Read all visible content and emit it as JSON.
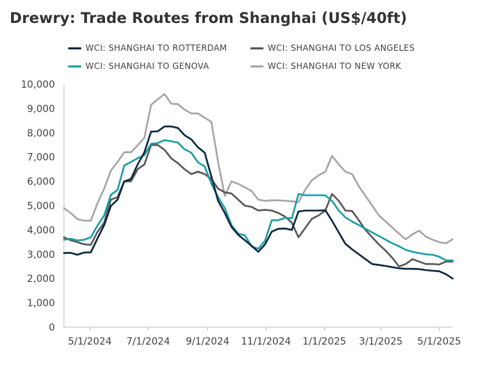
{
  "header": {
    "title": "Drewry: Trade Routes from Shanghai (US$/40ft)"
  },
  "chart_data": {
    "type": "line",
    "title": "Drewry: Trade Routes from Shanghai (US$/40ft)",
    "xlabel": "",
    "ylabel": "",
    "ylim": [
      0,
      10000
    ],
    "xlim": [
      "2024-04-04",
      "2025-05-15"
    ],
    "y_ticks": [
      0,
      1000,
      2000,
      3000,
      4000,
      5000,
      6000,
      7000,
      8000,
      9000,
      10000
    ],
    "y_tick_labels": [
      "0",
      "1,000",
      "2,000",
      "3,000",
      "4,000",
      "5,000",
      "6,000",
      "7,000",
      "8,000",
      "9,000",
      "10,000"
    ],
    "x_ticks": [
      "2024-05-01",
      "2024-07-01",
      "2024-09-01",
      "2024-11-01",
      "2025-01-01",
      "2025-03-01",
      "2025-05-01"
    ],
    "x_tick_labels": [
      "5/1/2024",
      "7/1/2024",
      "9/1/2024",
      "11/1/2024",
      "1/1/2025",
      "3/1/2025",
      "5/1/2025"
    ],
    "grid": false,
    "legend_position": "top",
    "dates": [
      "2024-04-04",
      "2024-04-11",
      "2024-04-18",
      "2024-04-25",
      "2024-05-02",
      "2024-05-09",
      "2024-05-16",
      "2024-05-23",
      "2024-05-30",
      "2024-06-06",
      "2024-06-13",
      "2024-06-20",
      "2024-06-27",
      "2024-07-04",
      "2024-07-11",
      "2024-07-18",
      "2024-07-25",
      "2024-08-01",
      "2024-08-08",
      "2024-08-15",
      "2024-08-22",
      "2024-08-29",
      "2024-09-05",
      "2024-09-12",
      "2024-09-19",
      "2024-09-26",
      "2024-10-03",
      "2024-10-10",
      "2024-10-17",
      "2024-10-24",
      "2024-10-31",
      "2024-11-07",
      "2024-11-14",
      "2024-11-21",
      "2024-11-28",
      "2024-12-05",
      "2024-12-12",
      "2024-12-19",
      "2024-12-26",
      "2025-01-02",
      "2025-01-09",
      "2025-01-16",
      "2025-01-23",
      "2025-01-30",
      "2025-02-06",
      "2025-02-13",
      "2025-02-20",
      "2025-02-27",
      "2025-03-06",
      "2025-03-13",
      "2025-03-20",
      "2025-03-27",
      "2025-04-03",
      "2025-04-10",
      "2025-04-17",
      "2025-04-24",
      "2025-05-01",
      "2025-05-08",
      "2025-05-15"
    ],
    "series": [
      {
        "name": "WCI: SHANGHAI TO ROTTERDAM",
        "color": "#0e2841",
        "values": [
          3050,
          3060,
          2980,
          3070,
          3080,
          3650,
          4200,
          4990,
          5250,
          6000,
          6100,
          6700,
          7200,
          8050,
          8060,
          8260,
          8260,
          8200,
          7900,
          7730,
          7400,
          7180,
          6200,
          5200,
          4700,
          4130,
          3800,
          3580,
          3350,
          3100,
          3400,
          3930,
          4050,
          4060,
          4000,
          4760,
          4800,
          4800,
          4800,
          4810,
          4380,
          3900,
          3430,
          3200,
          3000,
          2800,
          2600,
          2560,
          2520,
          2470,
          2420,
          2400,
          2400,
          2390,
          2350,
          2320,
          2300,
          2180,
          2000
        ]
      },
      {
        "name": "WCI: SHANGHAI TO LOS ANGELES",
        "color": "#595959",
        "values": [
          3700,
          3580,
          3500,
          3410,
          3390,
          3920,
          4300,
          5250,
          5350,
          6000,
          6000,
          6500,
          6700,
          7500,
          7500,
          7300,
          6950,
          6750,
          6500,
          6300,
          6400,
          6300,
          6100,
          5700,
          5550,
          5500,
          5250,
          5000,
          4950,
          4800,
          4830,
          4800,
          4700,
          4550,
          4300,
          3700,
          4080,
          4460,
          4600,
          4800,
          5480,
          5200,
          4800,
          4780,
          4400,
          4000,
          3700,
          3400,
          3150,
          2850,
          2500,
          2600,
          2800,
          2700,
          2600,
          2600,
          2580,
          2700,
          2700
        ]
      },
      {
        "name": "WCI: SHANGHAI TO GENOVA",
        "color": "#1e9ea4",
        "values": [
          3600,
          3640,
          3570,
          3600,
          3700,
          4180,
          4600,
          5450,
          5650,
          6650,
          6800,
          6950,
          7080,
          7550,
          7580,
          7700,
          7650,
          7600,
          7320,
          7180,
          6780,
          6620,
          5900,
          5350,
          4900,
          4200,
          3850,
          3780,
          3320,
          3230,
          3550,
          4400,
          4400,
          4500,
          4480,
          5480,
          5430,
          5430,
          5430,
          5420,
          5200,
          4800,
          4520,
          4350,
          4200,
          4050,
          3900,
          3750,
          3600,
          3450,
          3330,
          3180,
          3100,
          3050,
          3000,
          2980,
          2900,
          2750,
          2750
        ]
      },
      {
        "name": "WCI: SHANGHAI TO NEW YORK",
        "color": "#a6a6a6",
        "values": [
          4900,
          4700,
          4450,
          4380,
          4380,
          5100,
          5700,
          6450,
          6800,
          7200,
          7200,
          7480,
          7800,
          9150,
          9380,
          9600,
          9200,
          9180,
          8950,
          8800,
          8800,
          8620,
          8450,
          6800,
          5400,
          6000,
          5900,
          5760,
          5600,
          5250,
          5200,
          5220,
          5220,
          5200,
          5180,
          5150,
          5650,
          6050,
          6250,
          6400,
          7050,
          6700,
          6400,
          6300,
          5800,
          5400,
          5000,
          4600,
          4350,
          4100,
          3850,
          3620,
          3820,
          3970,
          3730,
          3600,
          3500,
          3450,
          3620
        ]
      }
    ]
  }
}
